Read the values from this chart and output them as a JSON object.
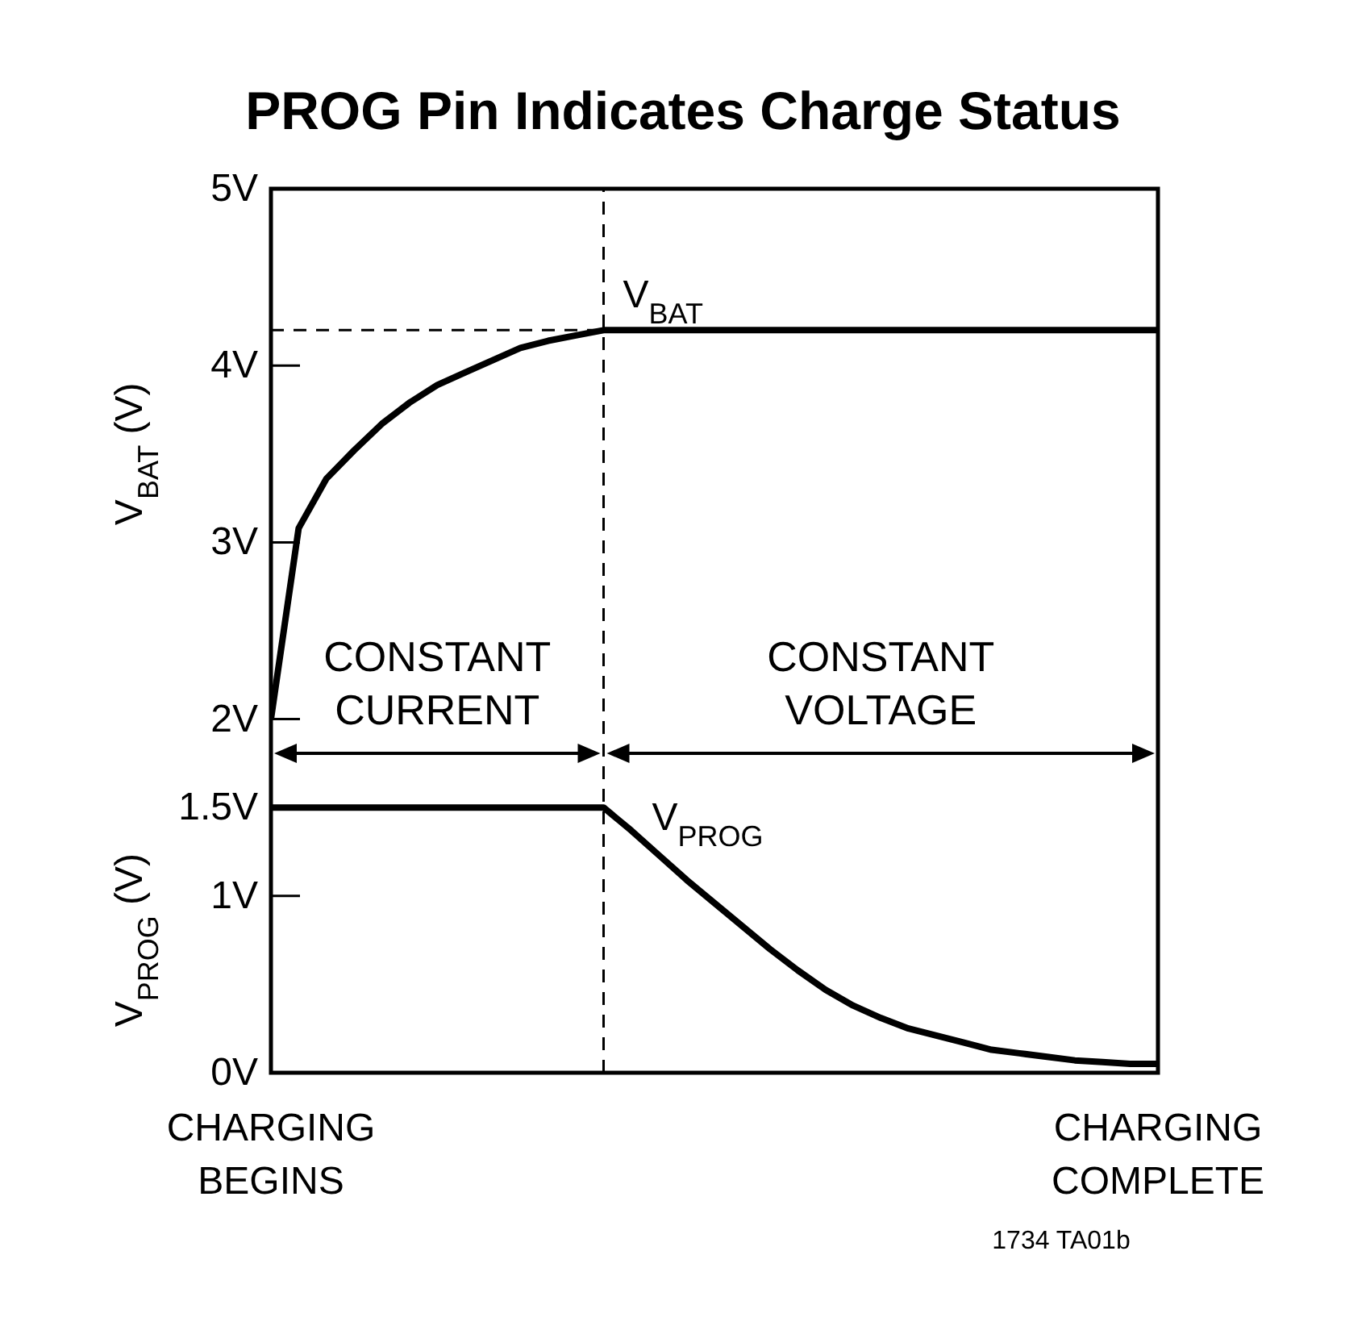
{
  "chart_data": {
    "type": "line",
    "title": "PROG Pin Indicates Charge Status",
    "ylabel": "V$_{BAT}$ (V)",
    "categories": [
      "CHARGING BEGINS",
      null,
      null,
      null,
      null,
      null,
      null,
      null,
      null,
      null,
      null,
      null,
      null,
      null,
      null,
      null,
      null,
      null,
      null,
      null,
      null,
      null,
      null,
      null,
      null,
      null,
      null,
      null,
      null,
      null,
      null,
      null,
      "CHARGING COMPLETE"
    ],
    "ylim": [
      0,
      5
    ],
    "yticks": [
      {
        "value": 0,
        "label": "0V"
      },
      {
        "value": 1,
        "label": "1V"
      },
      {
        "value": 1.5,
        "label": "1.5V"
      },
      {
        "value": 2,
        "label": "2V"
      },
      {
        "value": 3,
        "label": "3V"
      },
      {
        "value": 4,
        "label": "4V"
      },
      {
        "value": 5,
        "label": "5V"
      }
    ],
    "series": [
      {
        "name": "V$_{BAT}$",
        "color": "#000000",
        "values": [
          2.0,
          3.08,
          3.36,
          3.52,
          3.67,
          3.79,
          3.89,
          3.96,
          4.03,
          4.1,
          4.14,
          4.17,
          4.2,
          4.2,
          4.2,
          4.2,
          4.2,
          4.2,
          4.2,
          4.2,
          4.2,
          4.2,
          4.2,
          4.2,
          4.2,
          4.2,
          4.2,
          4.2,
          4.2,
          4.2,
          4.2,
          4.2,
          4.2
        ]
      },
      {
        "name": "V$_{PROG}$",
        "color": "#000000",
        "values": [
          1.5,
          1.5,
          1.5,
          1.5,
          1.5,
          1.5,
          1.5,
          1.5,
          1.5,
          1.5,
          1.5,
          1.5,
          1.5,
          1.37,
          1.23,
          1.09,
          0.96,
          0.83,
          0.7,
          0.58,
          0.47,
          0.38,
          0.31,
          0.25,
          0.21,
          0.17,
          0.13,
          0.11,
          0.09,
          0.07,
          0.06,
          0.05,
          0.05
        ]
      }
    ],
    "ref_lines": [
      {
        "axis": "y",
        "value": 4.2,
        "line_style": "dashed"
      }
    ],
    "annotations": [
      "CONSTANT CURRENT",
      "CONSTANT VOLTAGE",
      "V$_{PROG}$ (V)",
      "1734 TA01b"
    ],
    "marker": "none",
    "line_style": "solid"
  }
}
